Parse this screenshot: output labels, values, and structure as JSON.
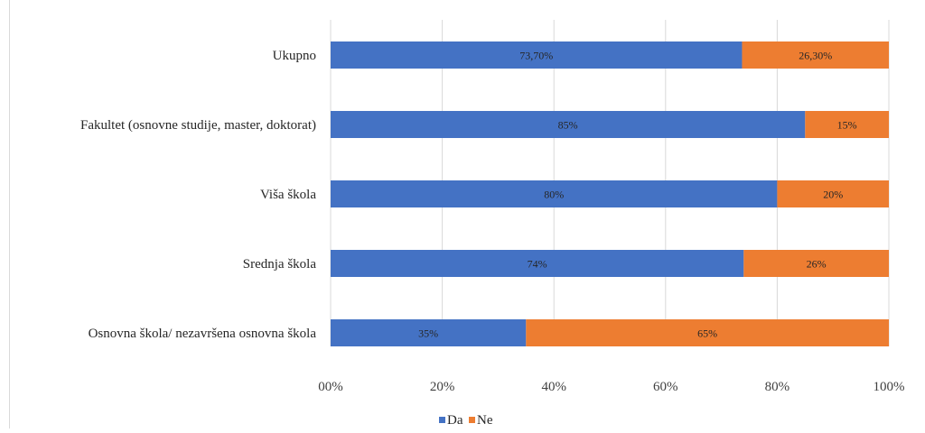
{
  "chart_data": {
    "type": "bar",
    "orientation": "horizontal",
    "stacked": "percent",
    "categories": [
      "Ukupno",
      "Fakultet (osnovne studije, master, doktorat)",
      "Viša škola",
      "Srednja škola",
      "Osnovna škola/ nezavršena osnovna škola"
    ],
    "series": [
      {
        "name": "Da",
        "color": "#4472c4",
        "values": [
          73.7,
          85,
          80,
          74,
          35
        ],
        "labels": [
          "73,70%",
          "85%",
          "80%",
          "74%",
          "35%"
        ]
      },
      {
        "name": "Ne",
        "color": "#ed7d31",
        "values": [
          26.3,
          15,
          20,
          26,
          65
        ],
        "labels": [
          "26,30%",
          "15%",
          "20%",
          "26%",
          "65%"
        ]
      }
    ],
    "x_ticks": [
      "00%",
      "20%",
      "40%",
      "60%",
      "80%",
      "100%"
    ],
    "xlim": [
      0,
      100
    ],
    "grid": true,
    "legend_position": "bottom"
  }
}
